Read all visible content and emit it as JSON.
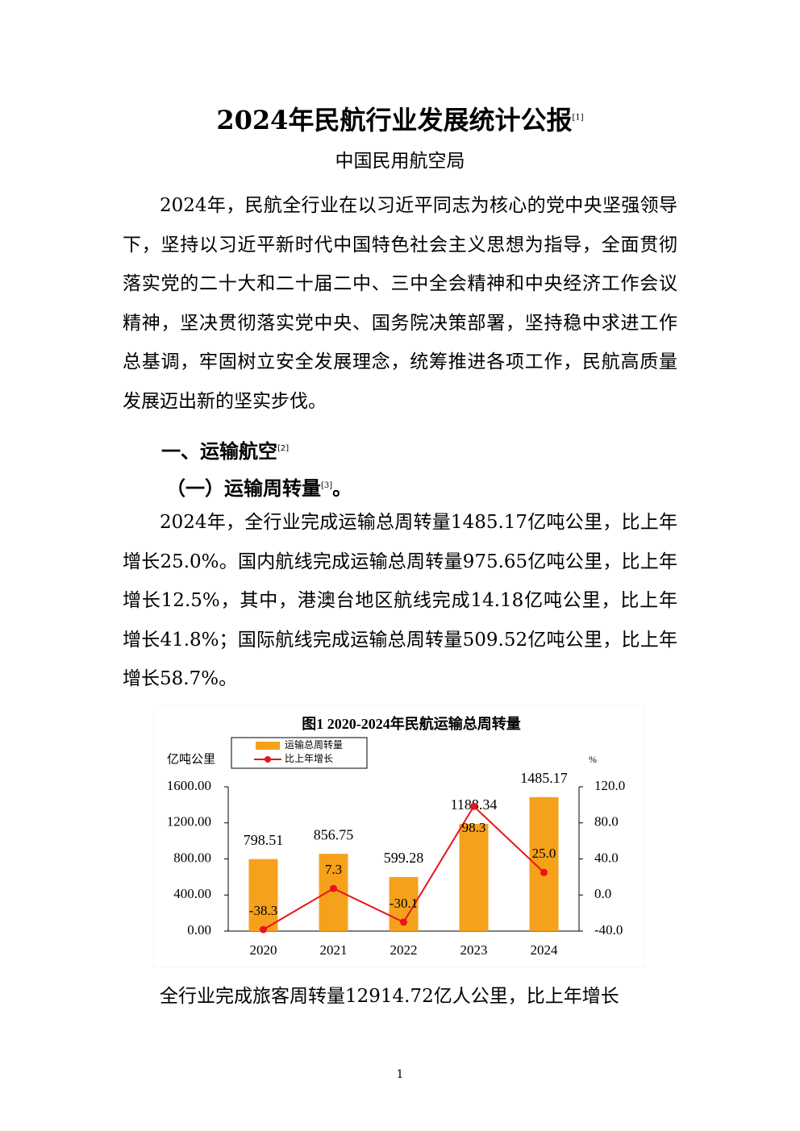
{
  "title": "2024年民航行业发展统计公报",
  "title_note": "[1]",
  "author": "中国民用航空局",
  "intro_paragraph": "2024年，民航全行业在以习近平同志为核心的党中央坚强领导下，坚持以习近平新时代中国特色社会主义思想为指导，全面贯彻落实党的二十大和二十届二中、三中全会精神和中央经济工作会议精神，坚决贯彻落实党中央、国务院决策部署，坚持稳中求进工作总基调，牢固树立安全发展理念，统筹推进各项工作，民航高质量发展迈出新的坚实步伐。",
  "section": {
    "heading": "一、运输航空",
    "note": "[2]"
  },
  "subsection": {
    "heading": "（一）运输周转量",
    "note": "[3]",
    "end": "。"
  },
  "body_paragraph": "2024年，全行业完成运输总周转量1485.17亿吨公里，比上年增长25.0%。国内航线完成运输总周转量975.65亿吨公里，比上年增长12.5%，其中，港澳台地区航线完成14.18亿吨公里，比上年增长41.8%；国际航线完成运输总周转量509.52亿吨公里，比上年增长58.7%。",
  "chart_data": {
    "type": "bar_line",
    "title": "图1  2020-2024年民航运输总周转量",
    "y_label": "亿吨公里",
    "y2_label": "%",
    "categories": [
      "2020",
      "2021",
      "2022",
      "2023",
      "2024"
    ],
    "series": [
      {
        "name": "运输总周转量",
        "type": "bar",
        "color": "#f5a11c",
        "values": [
          798.51,
          856.75,
          599.28,
          1188.34,
          1485.17
        ]
      },
      {
        "name": "比上年增长",
        "type": "line",
        "axis": "y2",
        "color": "#e8141b",
        "values": [
          -38.3,
          7.3,
          -30.1,
          98.3,
          25.0
        ],
        "value_labels": [
          "-38.3",
          "7.3",
          "-30.1",
          "98.3",
          "25.0"
        ]
      }
    ],
    "ylim": [
      0,
      1600
    ],
    "yticks": [
      {
        "value": 0,
        "label": "0.00"
      },
      {
        "value": 400,
        "label": "400.00"
      },
      {
        "value": 800,
        "label": "800.00"
      },
      {
        "value": 1200,
        "label": "1200.00"
      },
      {
        "value": 1600,
        "label": "1600.00"
      }
    ],
    "y2lim": [
      -40,
      120
    ],
    "y2ticks": [
      {
        "value": -40,
        "label": "-40.0"
      },
      {
        "value": 0,
        "label": "0.0"
      },
      {
        "value": 40,
        "label": "40.0"
      },
      {
        "value": 80,
        "label": "80.0"
      },
      {
        "value": 120,
        "label": "120.0"
      }
    ],
    "legend": "top-left"
  },
  "closing_paragraph": "全行业完成旅客周转量12914.72亿人公里，比上年增长",
  "page_number": "1"
}
